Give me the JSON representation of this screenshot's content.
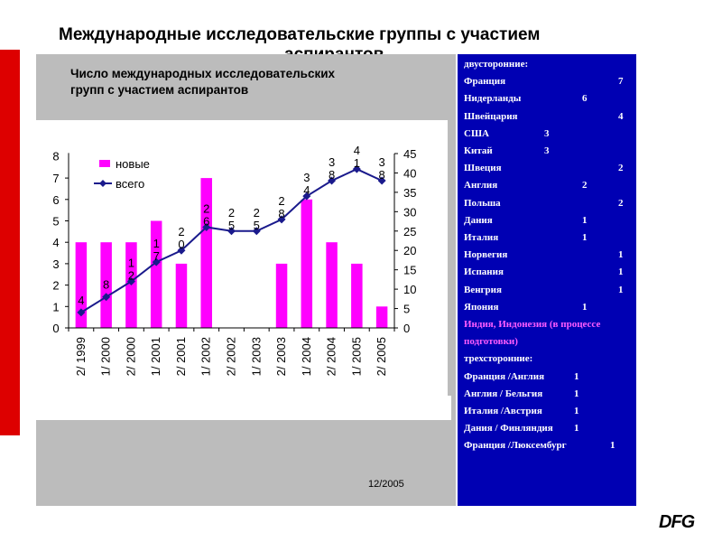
{
  "title_line1": "Международные исследовательские группы с участием",
  "title_line2": "аспирантов",
  "subtitle": "Число международных исследовательских групп с участием аспирантов",
  "date": "12/2005",
  "logo": "DFG",
  "colors": {
    "bars": "#ff00ff",
    "line": "#1a1a8c",
    "panel_right": "#0000b3",
    "red_bar": "#dd0000"
  },
  "chart_data": {
    "type": "bar",
    "categories": [
      "2/ 1999",
      "1/ 2000",
      "2/ 2000",
      "1/ 2001",
      "2/ 2001",
      "1/ 2002",
      "2/ 2002",
      "1/ 2003",
      "2/ 2003",
      "1/ 2004",
      "2/ 2004",
      "1/ 2005",
      "2/ 2005"
    ],
    "series": [
      {
        "name": "новые",
        "type": "bar",
        "axis": "left",
        "values": [
          4,
          4,
          4,
          5,
          3,
          7,
          0,
          0,
          3,
          6,
          4,
          3,
          1
        ]
      },
      {
        "name": "всего",
        "type": "line",
        "axis": "right",
        "values": [
          4,
          8,
          12,
          17,
          20,
          26,
          25,
          25,
          28,
          34,
          38,
          41,
          38
        ],
        "labels": [
          [
            "4"
          ],
          [
            "8"
          ],
          [
            "1",
            "2"
          ],
          [
            "1",
            "7"
          ],
          [
            "2",
            "0"
          ],
          [
            "2",
            "6"
          ],
          [
            "2",
            "5"
          ],
          [
            "2",
            "5"
          ],
          [
            "2",
            "8"
          ],
          [
            "3",
            "4"
          ],
          [
            "3",
            "8"
          ],
          [
            "4",
            "1"
          ],
          [
            "3",
            "8"
          ]
        ]
      }
    ],
    "y_left": {
      "ticks": [
        "0",
        "1",
        "2",
        "3",
        "4",
        "5",
        "6",
        "7"
      ],
      "top_partial": "8",
      "range": [
        0,
        8
      ]
    },
    "y_right": {
      "ticks": [
        "0",
        "5",
        "10",
        "15",
        "20",
        "25",
        "30",
        "35",
        "40",
        "45"
      ],
      "range": [
        0,
        45
      ]
    },
    "legend": {
      "position": "top-left",
      "entries": [
        "новые",
        "всего"
      ]
    }
  },
  "list": {
    "bilateral_header": "двусторонние:",
    "bilateral": [
      {
        "name": "Франция",
        "value": "7"
      },
      {
        "name": "Нидерланды",
        "value": "6"
      },
      {
        "name": "Швейцария",
        "value": "4"
      },
      {
        "name": "США",
        "value": "3"
      },
      {
        "name": "Китай",
        "value": "3"
      },
      {
        "name": "Швеция",
        "value": "2"
      },
      {
        "name": "Англия",
        "value": "2"
      },
      {
        "name": "Польша",
        "value": "2"
      },
      {
        "name": "Дания",
        "value": "1"
      },
      {
        "name": "Италия",
        "value": "1"
      },
      {
        "name": "Норвегия",
        "value": "1"
      },
      {
        "name": "Испания",
        "value": "1"
      },
      {
        "name": "Венгрия",
        "value": "1"
      },
      {
        "name": "Япония",
        "value": "1"
      }
    ],
    "in_prep_line1": "Индия, Индонезия  (в процессе",
    "in_prep_line2": "подготовки)",
    "trilateral_header": "трехсторонние:",
    "trilateral": [
      {
        "name": "Франция /Англия",
        "value": "1"
      },
      {
        "name": "Англия / Бельгия",
        "value": "1"
      },
      {
        "name": "Италия /Австрия",
        "value": "1"
      },
      {
        "name": "Дания / Финляндия",
        "value": "1"
      },
      {
        "name": "Франция /Люксембург",
        "value": "1"
      }
    ]
  }
}
